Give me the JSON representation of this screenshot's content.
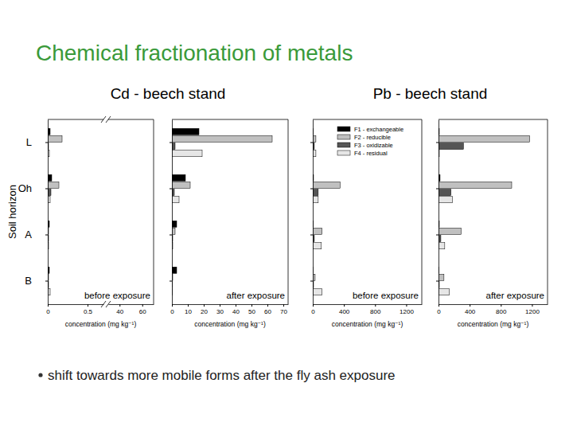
{
  "title": "Chemical fractionation of metals",
  "bullet": "shift towards more mobile forms after the fly ash exposure",
  "y_label": "Soil horizon",
  "group_titles": [
    "Cd - beech stand",
    "Pb - beech stand"
  ],
  "chart_data": [
    {
      "type": "bar",
      "orientation": "horizontal",
      "annotation": "before exposure",
      "xlabel": "concentration (mg kg⁻¹)",
      "categories": [
        "L",
        "Oh",
        "A",
        "B"
      ],
      "xlim": [
        0,
        0.7
      ],
      "xticks": [
        0,
        0.5
      ],
      "x_break_lim": [
        30,
        70
      ],
      "x_break_ticks": [
        40,
        60
      ],
      "series": [
        {
          "color": "#000000",
          "values": [
            0.03,
            0.05,
            0.02,
            0.02
          ]
        },
        {
          "color": "#c0c0c0",
          "values": [
            0.18,
            0.14,
            0.01,
            0.01
          ]
        },
        {
          "color": "#555555",
          "values": [
            0.01,
            0.04,
            0.01,
            0.01
          ]
        },
        {
          "color": "#e6e6e6",
          "values": [
            0.02,
            0.03,
            0.01,
            0.03
          ]
        }
      ]
    },
    {
      "type": "bar",
      "orientation": "horizontal",
      "annotation": "after exposure",
      "xlabel": "concentration (mg kg⁻¹)",
      "tick_labels": "x",
      "categories": [
        "L",
        "Oh",
        "A",
        "B"
      ],
      "xlim": [
        0,
        73
      ],
      "xticks": [
        0,
        10,
        20,
        30,
        40,
        50,
        60,
        70
      ],
      "series": [
        {
          "color": "#000000",
          "values": [
            17,
            8.5,
            3,
            3
          ]
        },
        {
          "color": "#c0c0c0",
          "values": [
            63,
            11.5,
            2,
            0.5
          ]
        },
        {
          "color": "#555555",
          "values": [
            2,
            1.5,
            0.5,
            0.2
          ]
        },
        {
          "color": "#e6e6e6",
          "values": [
            19,
            4.5,
            0.5,
            0.3
          ]
        }
      ]
    },
    {
      "type": "bar",
      "orientation": "horizontal",
      "annotation": "before exposure",
      "xlabel": "concentration (mg kg⁻¹)",
      "tick_labels": "x",
      "legend": "upper right",
      "categories": [
        "L",
        "Oh",
        "A",
        "B"
      ],
      "xlim": [
        0,
        1400
      ],
      "xticks": [
        0,
        400,
        800,
        1200
      ],
      "series": [
        {
          "name": "F1 - exchangeable",
          "color": "#000000",
          "values": [
            5,
            10,
            5,
            2
          ]
        },
        {
          "name": "F2 - reducible",
          "color": "#c0c0c0",
          "values": [
            40,
            350,
            120,
            30
          ]
        },
        {
          "name": "F3 - oxidizable",
          "color": "#555555",
          "values": [
            20,
            70,
            20,
            10
          ]
        },
        {
          "name": "F4 - residual",
          "color": "#e6e6e6",
          "values": [
            40,
            70,
            110,
            120
          ]
        }
      ]
    },
    {
      "type": "bar",
      "orientation": "horizontal",
      "annotation": "after exposure",
      "xlabel": "concentration (mg kg⁻¹)",
      "tick_labels": "x",
      "categories": [
        "L",
        "Oh",
        "A",
        "B"
      ],
      "xlim": [
        0,
        1400
      ],
      "xticks": [
        0,
        400,
        800,
        1200
      ],
      "series": [
        {
          "color": "#000000",
          "values": [
            10,
            20,
            10,
            5
          ]
        },
        {
          "color": "#c0c0c0",
          "values": [
            1170,
            940,
            290,
            70
          ]
        },
        {
          "color": "#555555",
          "values": [
            320,
            160,
            30,
            10
          ]
        },
        {
          "color": "#e6e6e6",
          "values": [
            10,
            180,
            80,
            140
          ]
        }
      ]
    }
  ]
}
